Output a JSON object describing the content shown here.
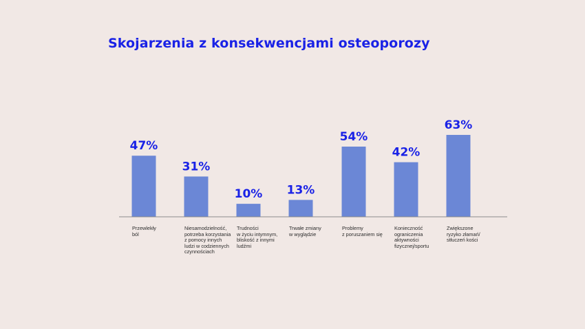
{
  "chart_data": {
    "type": "bar",
    "title": "Skojarzenia z konsekwencjami osteoporozy",
    "categories": [
      "Przewlekły\nból",
      "Niesamodzielność,\npotrzeba korzystania\nz pomocy innych\nludzi w codziennych\nczynnościach",
      "Trudności\nw życiu intymnym,\nbliskość z innymi\nludźmi",
      "Trwałe zmiany\nw wyglądzie",
      "Problemy\nz poruszaniem się",
      "Konieczność\nograniczenia\naktywności\nfizycznej/sportu",
      "Zwiększone\nryzyko złamań/\nstłuczeń kości"
    ],
    "values": [
      47,
      31,
      10,
      13,
      54,
      42,
      63
    ],
    "value_labels": [
      "47%",
      "31%",
      "10%",
      "13%",
      "54%",
      "42%",
      "63%"
    ],
    "unit": "%",
    "ylim": [
      0,
      63
    ],
    "grid": false,
    "legend": "none",
    "colors": {
      "bar": "#6b87d6",
      "value_label": "#1a22e6",
      "title": "#1a22e6",
      "baseline": "#8a8a8a",
      "background": "#f1e8e5"
    }
  }
}
